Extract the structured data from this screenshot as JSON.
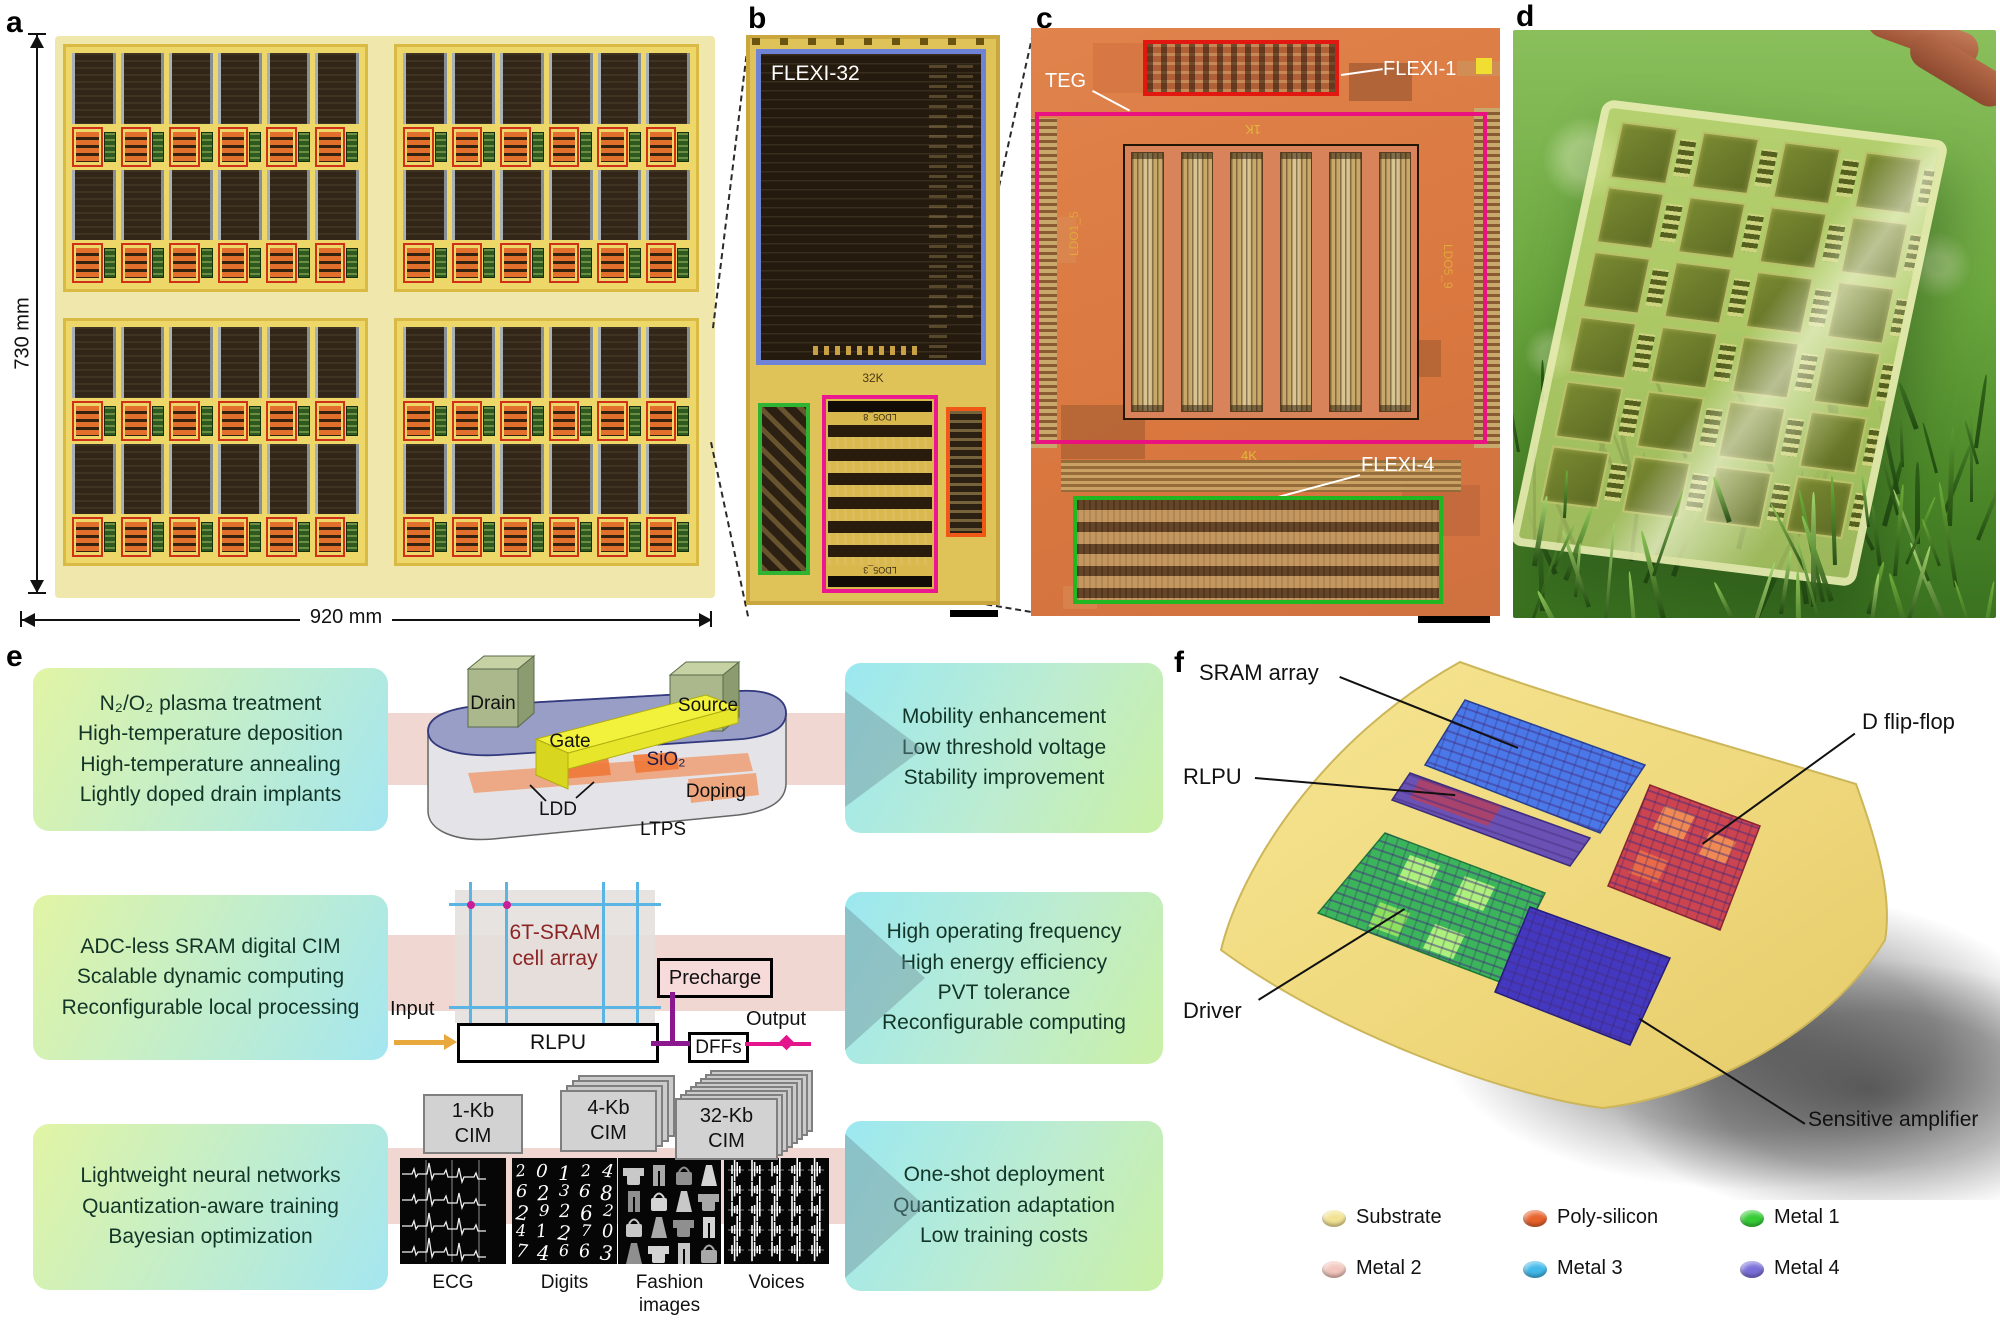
{
  "panels": {
    "a": {
      "label": "a",
      "height_dim": "730 mm",
      "width_dim": "920 mm"
    },
    "b": {
      "label": "b",
      "chip_name": "FLEXI-32",
      "array_label": "32K",
      "block_top_label": "LDO5_8",
      "block_bottom_label": "LDO5_3"
    },
    "c": {
      "label": "c",
      "teg_label": "TEG",
      "flexi1_label": "FLEXI-1",
      "flexi4_label": "FLEXI-4",
      "array1_label": "1K",
      "array4_label": "4K",
      "ldo_left_label": "LDO1_5",
      "ldo_right_label": "LDO5_9"
    },
    "d": {
      "label": "d"
    },
    "e": {
      "label": "e",
      "rows": [
        {
          "left": [
            "N₂/O₂ plasma treatment",
            "High-temperature deposition",
            "High-temperature annealing",
            "Lightly doped drain implants"
          ],
          "right": [
            "Mobility enhancement",
            "Low threshold voltage",
            "Stability improvement"
          ]
        },
        {
          "left": [
            "ADC-less SRAM digital CIM",
            "Scalable dynamic computing",
            "Reconfigurable local processing"
          ],
          "right": [
            "High operating frequency",
            "High energy efficiency",
            "PVT tolerance",
            "Reconfigurable computing"
          ]
        },
        {
          "left": [
            "Lightweight neural networks",
            "Quantization-aware training",
            "Bayesian optimization"
          ],
          "right": [
            "One-shot deployment",
            "Quantization adaptation",
            "Low training costs"
          ]
        }
      ],
      "transistor": {
        "drain": "Drain",
        "gate": "Gate",
        "source": "Source",
        "sio2": "SiO₂",
        "ldd": "LDD",
        "doping": "Doping",
        "ltps": "LTPS"
      },
      "cim_pipeline": {
        "array_line1": "6T-SRAM",
        "array_line2": "cell array",
        "precharge": "Precharge",
        "input": "Input",
        "rlpu": "RLPU",
        "dffs": "DFFs",
        "output": "Output"
      },
      "cim_macros": [
        {
          "line1": "1-Kb",
          "line2": "CIM"
        },
        {
          "line1": "4-Kb",
          "line2": "CIM"
        },
        {
          "line1": "32-Kb",
          "line2": "CIM"
        }
      ],
      "datasets": [
        {
          "label": "ECG"
        },
        {
          "label": "Digits"
        },
        {
          "label": "Fashion images"
        },
        {
          "label": "Voices"
        }
      ],
      "digit_rows": [
        "20124",
        "62368",
        "29262",
        "41270",
        "74663"
      ]
    },
    "f": {
      "label": "f",
      "callouts": [
        "SRAM array",
        "RLPU",
        "Driver",
        "D flip-flop",
        "Sensitive amplifier"
      ],
      "legend": [
        {
          "label": "Substrate",
          "color": "#f2e394"
        },
        {
          "label": "Poly-silicon",
          "color": "#e8632c"
        },
        {
          "label": "Metal 1",
          "color": "#35cc35"
        },
        {
          "label": "Metal 2",
          "color": "#f2c6bd"
        },
        {
          "label": "Metal 3",
          "color": "#41b9ea"
        },
        {
          "label": "Metal 4",
          "color": "#7a6fd8"
        }
      ]
    }
  }
}
